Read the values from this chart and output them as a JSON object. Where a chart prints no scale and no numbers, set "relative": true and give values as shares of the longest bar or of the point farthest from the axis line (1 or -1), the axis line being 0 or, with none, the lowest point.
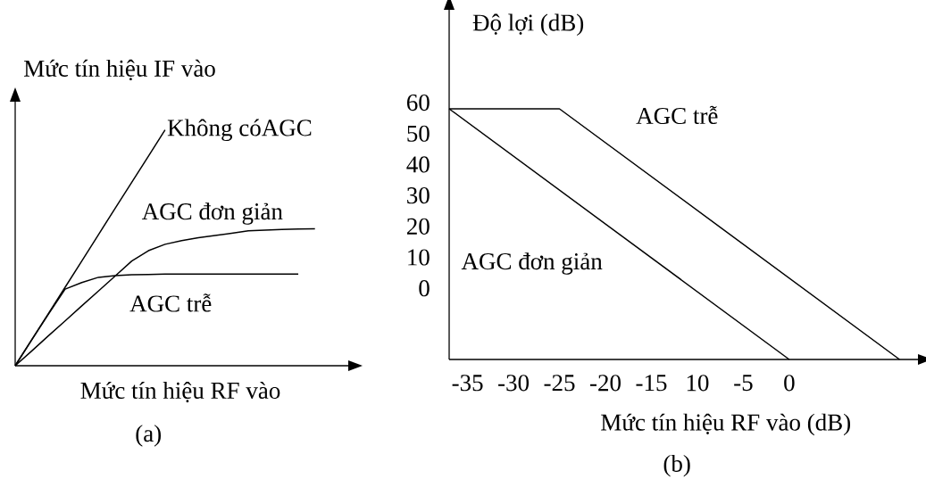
{
  "chart_data": [
    {
      "type": "line",
      "relative": true,
      "xlabel": "Mức tín hiệu RF vào",
      "ylabel": "Mức tín hiệu IF vào",
      "annotations": [
        "(a)"
      ],
      "categories": [
        null,
        null,
        null,
        null,
        null,
        null,
        null,
        null,
        null,
        null,
        null,
        null,
        null,
        null,
        null,
        null,
        null,
        null,
        null,
        null
      ],
      "series": [
        {
          "name": "Không cóAGC",
          "color": "#000000",
          "values": [
            0,
            0.111,
            0.222,
            0.333,
            0.444,
            0.556,
            0.667,
            0.778,
            0.889,
            1,
            null,
            null,
            null,
            null,
            null,
            null,
            null,
            null,
            null,
            null
          ]
        },
        {
          "name": "AGC đơn giản",
          "color": "#000000",
          "values": [
            0,
            0.063,
            0.127,
            0.19,
            0.254,
            0.317,
            0.38,
            0.444,
            0.488,
            0.515,
            0.531,
            0.543,
            0.552,
            0.562,
            0.572,
            0.575,
            0.578,
            0.58,
            0.581,
            null
          ]
        },
        {
          "name": "AGC trễ",
          "color": "#000000",
          "values": [
            0,
            0.11,
            0.219,
            0.325,
            0.353,
            0.375,
            0.382,
            0.386,
            0.387,
            0.389,
            0.389,
            0.389,
            0.389,
            0.389,
            0.389,
            0.389,
            0.389,
            0.389,
            null,
            null
          ]
        }
      ]
    },
    {
      "type": "line",
      "xlabel": "Mức tín hiệu RF vào (dB)",
      "ylabel": "Độ lợi (dB)",
      "annotations": [
        "(b)"
      ],
      "xlim": [
        -37,
        14
      ],
      "ylim": [
        -23,
        90
      ],
      "xticks": [
        -35,
        -30,
        -25,
        -20,
        -15,
        {
          "value": -10,
          "label": "10"
        },
        -5,
        0
      ],
      "yticks": [
        0,
        10,
        20,
        30,
        40,
        50,
        60
      ],
      "series": [
        {
          "name": "AGC trễ",
          "color": "#000000",
          "x": [
            -37,
            -25,
            12
          ],
          "values": [
            58,
            58,
            -23
          ]
        },
        {
          "name": "AGC đơn giản",
          "color": "#000000",
          "x": [
            -37,
            0
          ],
          "values": [
            58,
            -23
          ]
        }
      ]
    }
  ]
}
